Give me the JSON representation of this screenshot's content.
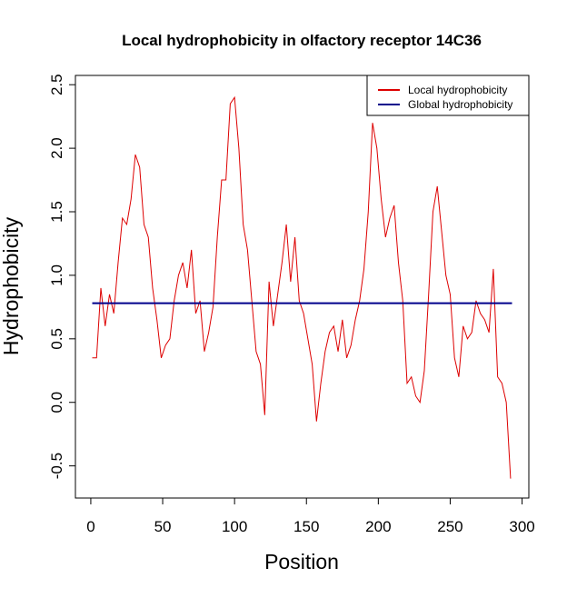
{
  "chart_data": {
    "type": "line",
    "title": "Local hydrophobicity in olfactory receptor 14C36",
    "x_label": "Position",
    "y_label": "Hydrophobicity",
    "xlim": [
      -10.7,
      304.7
    ],
    "ylim": [
      -0.753,
      2.573
    ],
    "xticks": [
      0,
      50,
      100,
      150,
      200,
      250,
      300
    ],
    "yticks": [
      -0.5,
      {
        "value": 0,
        "label": "0.0"
      },
      0.5,
      {
        "value": 1,
        "label": "1.0"
      },
      1.5,
      {
        "value": 2,
        "label": "2.0"
      },
      2.5
    ],
    "legend": "top-right",
    "series": [
      {
        "name": "Local hydrophobicity",
        "color": "#dd0000",
        "x": [
          1,
          4,
          7,
          10,
          13,
          16,
          19,
          22,
          25,
          28,
          31,
          34,
          37,
          40,
          43,
          46,
          49,
          52,
          55,
          58,
          61,
          64,
          67,
          70,
          73,
          76,
          79,
          82,
          85,
          88,
          91,
          94,
          97,
          100,
          103,
          106,
          109,
          112,
          115,
          118,
          121,
          124,
          127,
          130,
          133,
          136,
          139,
          142,
          145,
          148,
          151,
          154,
          157,
          160,
          163,
          166,
          169,
          172,
          175,
          178,
          181,
          184,
          187,
          190,
          193,
          196,
          199,
          202,
          205,
          208,
          211,
          214,
          217,
          220,
          223,
          226,
          229,
          232,
          235,
          238,
          241,
          244,
          247,
          250,
          253,
          256,
          259,
          262,
          265,
          268,
          271,
          274,
          277,
          280,
          283,
          286,
          289,
          292
        ],
        "values": [
          0.35,
          0.35,
          0.9,
          0.6,
          0.85,
          0.7,
          1.1,
          1.45,
          1.4,
          1.6,
          1.95,
          1.85,
          1.4,
          1.3,
          0.9,
          0.65,
          0.35,
          0.45,
          0.5,
          0.8,
          1.0,
          1.1,
          0.9,
          1.2,
          0.7,
          0.8,
          0.4,
          0.55,
          0.75,
          1.3,
          1.75,
          1.75,
          2.35,
          2.4,
          2.0,
          1.4,
          1.2,
          0.8,
          0.4,
          0.3,
          -0.1,
          0.95,
          0.6,
          0.85,
          1.1,
          1.4,
          0.95,
          1.3,
          0.8,
          0.7,
          0.5,
          0.3,
          -0.15,
          0.15,
          0.4,
          0.55,
          0.6,
          0.4,
          0.65,
          0.35,
          0.45,
          0.65,
          0.8,
          1.05,
          1.5,
          2.2,
          2.0,
          1.6,
          1.3,
          1.45,
          1.55,
          1.1,
          0.8,
          0.15,
          0.2,
          0.05,
          0.0,
          0.25,
          0.85,
          1.5,
          1.7,
          1.35,
          1.0,
          0.85,
          0.35,
          0.2,
          0.6,
          0.5,
          0.55,
          0.8,
          0.7,
          0.65,
          0.55,
          1.05,
          0.2,
          0.15,
          0.0,
          -0.6
        ]
      },
      {
        "name": "Global hydrophobicity",
        "color": "#00008b",
        "x": [
          1,
          293
        ],
        "values": [
          0.78,
          0.78
        ]
      }
    ]
  }
}
